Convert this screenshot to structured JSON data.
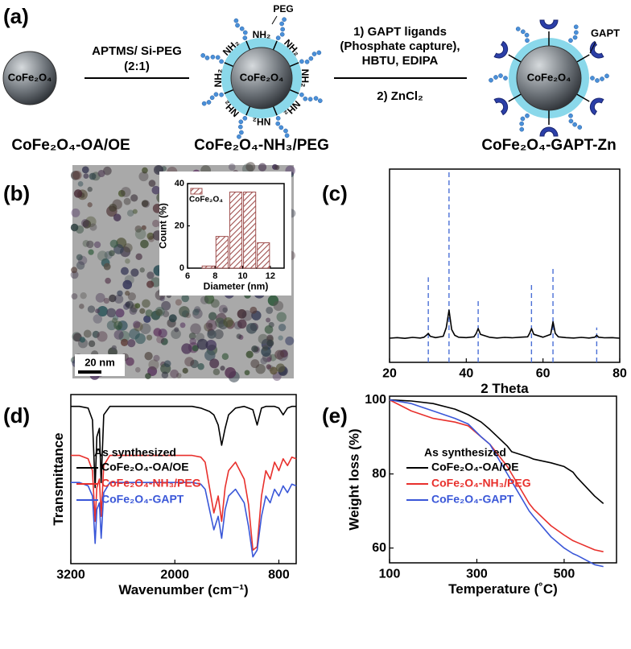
{
  "panels": [
    "(a)",
    "(b)",
    "(c)",
    "(d)",
    "(e)"
  ],
  "scheme": {
    "cores": [
      "CoFe₂O₄",
      "CoFe₂O₄",
      "CoFe₂O₄"
    ],
    "step1": [
      "APTMS/ Si-PEG",
      "(2:1)"
    ],
    "step2": [
      "1) GAPT ligands",
      "(Phosphate capture),",
      "HBTU, EDIPA",
      "2) ZnCl₂"
    ],
    "shell_labels": [
      "NH₂",
      "NH₂",
      "NH₂",
      "NH₂",
      "NH₂",
      "NH₂",
      "NH₂",
      "NH₂"
    ],
    "peg_label": "PEG",
    "gapt_label": "GAPT",
    "names": [
      "CoFe₂O₄-OA/OE",
      "CoFe₂O₄-NH₃/PEG",
      "CoFe₂O₄-GAPT-Zn"
    ]
  },
  "tem": {
    "scale_bar": "20 nm"
  },
  "chart_data": [
    {
      "type": "histogram",
      "x_label": "Diameter (nm)",
      "y_label": "Count (%)",
      "bins": [
        7,
        8,
        9,
        10,
        11,
        12
      ],
      "series": [
        {
          "name": "CoFe₂O₄",
          "color": "#a0504f",
          "values": [
            1,
            15,
            36,
            36,
            12
          ]
        }
      ],
      "xlim": [
        6,
        13
      ],
      "ylim": [
        0,
        40
      ],
      "xticks": [
        6,
        8,
        10,
        12
      ],
      "yticks": [
        0,
        20,
        40
      ]
    },
    {
      "type": "line",
      "x_label": "2 Theta",
      "x": [
        20,
        22,
        24,
        26,
        28,
        29,
        29.6,
        30.1,
        30.6,
        32,
        34,
        34.8,
        35.5,
        36.2,
        37,
        38,
        40,
        42,
        42.6,
        43.1,
        43.7,
        46,
        48,
        50,
        52,
        54,
        56,
        56.5,
        57,
        57.6,
        60,
        62,
        62.6,
        63.2,
        64,
        66,
        68,
        70,
        72,
        73.5,
        74,
        74.5,
        76,
        78,
        80
      ],
      "series": [
        {
          "color": "#000000",
          "values": [
            12.5,
            12.8,
            12.4,
            12.9,
            12.6,
            13,
            14,
            15,
            13.5,
            12.8,
            13.5,
            18,
            27,
            17,
            14,
            13,
            12.8,
            13.2,
            15,
            17.5,
            14.5,
            13,
            12.6,
            12.9,
            12.7,
            13,
            13.2,
            15,
            17.5,
            14.5,
            13,
            14.5,
            21,
            15,
            13.2,
            12.8,
            12.6,
            12.9,
            12.6,
            13,
            14,
            13,
            12.7,
            12.8,
            12.5
          ]
        }
      ],
      "peaks": [
        30.1,
        35.5,
        43.1,
        57,
        62.6,
        74
      ],
      "peak_values": [
        44,
        100,
        32,
        41,
        49,
        18
      ],
      "peak_color": "#4a6fd6",
      "xlim": [
        20,
        80
      ],
      "ylim": [
        0,
        100
      ],
      "xticks": [
        20,
        40,
        60,
        80
      ]
    },
    {
      "type": "line",
      "x_label": "Wavenumber (cm⁻¹)",
      "y_label": "Transmittance",
      "legend_title": "As synthesized",
      "legend": "lower left",
      "x": [
        3200,
        3100,
        3000,
        2950,
        2920,
        2900,
        2870,
        2850,
        2820,
        2750,
        2500,
        2300,
        2000,
        1800,
        1700,
        1650,
        1600,
        1550,
        1500,
        1460,
        1420,
        1380,
        1300,
        1200,
        1150,
        1100,
        1050,
        1000,
        950,
        900,
        850,
        800,
        750,
        700,
        650,
        600
      ],
      "series": [
        {
          "name": "CoFe₂O₄-OA/OE",
          "color": "#000000",
          "values": [
            93,
            93,
            92,
            85,
            45,
            75,
            80,
            48,
            88,
            93,
            93,
            93,
            93,
            93,
            92,
            91,
            90,
            88,
            82,
            70,
            80,
            88,
            92,
            93,
            92,
            91,
            82,
            92,
            93,
            93,
            93,
            92,
            88,
            92,
            93,
            93
          ]
        },
        {
          "name": "CoFe₂O₄-NH₃/PEG",
          "color": "#e8302c",
          "values": [
            64,
            64,
            62,
            55,
            25,
            45,
            50,
            28,
            58,
            64,
            64,
            64,
            64,
            64,
            63,
            60,
            45,
            30,
            40,
            25,
            45,
            55,
            60,
            50,
            35,
            8,
            10,
            40,
            55,
            50,
            60,
            55,
            62,
            58,
            63,
            62
          ]
        },
        {
          "name": "CoFe₂O₄-GAPT",
          "color": "#3a57d8",
          "values": [
            48,
            48,
            46,
            40,
            12,
            32,
            36,
            15,
            42,
            48,
            48,
            48,
            48,
            48,
            47,
            44,
            32,
            20,
            28,
            15,
            32,
            40,
            44,
            36,
            22,
            4,
            8,
            28,
            40,
            36,
            44,
            40,
            46,
            42,
            47,
            46
          ]
        }
      ],
      "xlim": [
        3200,
        600
      ],
      "ylim": [
        0,
        100
      ],
      "xticks": [
        3200,
        2000,
        800
      ]
    },
    {
      "type": "line",
      "x_label": "Temperature (˚C)",
      "y_label": "Weight loss (%)",
      "legend_title": "As synthesized",
      "legend": "lower left",
      "x": [
        100,
        150,
        200,
        250,
        280,
        310,
        330,
        370,
        380,
        420,
        430,
        470,
        500,
        520,
        530,
        570,
        590
      ],
      "series": [
        {
          "name": "CoFe₂O₄-OA/OE",
          "color": "#000000",
          "values": [
            100,
            99.7,
            99,
            97.5,
            96,
            94,
            92,
            87.5,
            86,
            84.5,
            84,
            83,
            82,
            80.5,
            79,
            74,
            72
          ]
        },
        {
          "name": "CoFe₂O₄-NH₃/PEG",
          "color": "#e8302c",
          "values": [
            100,
            97,
            95,
            94,
            93,
            90,
            88,
            82,
            80,
            72,
            70.5,
            66,
            63.5,
            62,
            61.5,
            59.5,
            59
          ]
        },
        {
          "name": "CoFe₂O₄-GAPT",
          "color": "#3a57d8",
          "values": [
            100,
            99,
            97,
            95,
            93.5,
            90,
            88,
            80,
            78,
            70,
            68.5,
            63,
            60,
            58.5,
            58,
            55.5,
            55
          ]
        }
      ],
      "xlim": [
        100,
        620
      ],
      "ylim": [
        56,
        101
      ],
      "xticks": [
        100,
        300,
        500
      ],
      "yticks": [
        60,
        80,
        100
      ]
    }
  ]
}
